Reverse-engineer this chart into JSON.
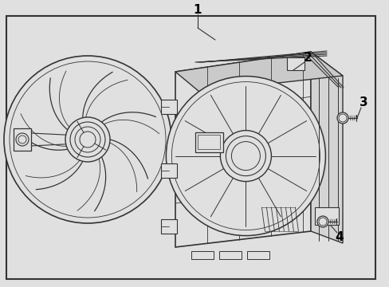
{
  "bg_color": "#e0e0e0",
  "border_color": "#222222",
  "line_color": "#333333",
  "white": "#ffffff",
  "fig_width": 4.89,
  "fig_height": 3.6,
  "dpi": 100
}
